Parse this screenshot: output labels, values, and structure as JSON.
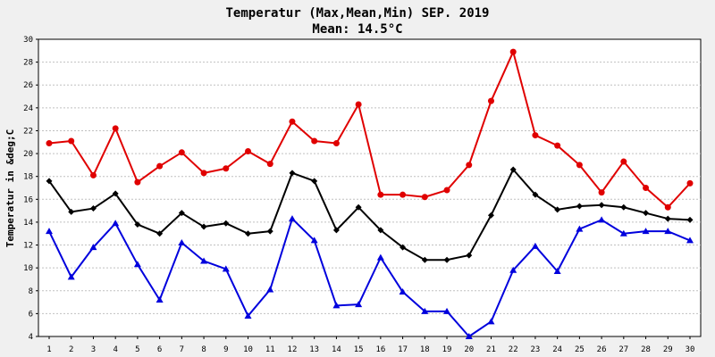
{
  "chart_data": {
    "type": "line",
    "title": "Temperatur (Max,Mean,Min) SEP. 2019",
    "subtitle": "Mean: 14.5°C",
    "xlabel": "",
    "ylabel": "Temperatur in &deg;C",
    "ylim": [
      4,
      30
    ],
    "yticks": [
      4,
      6,
      8,
      10,
      12,
      14,
      16,
      18,
      20,
      22,
      24,
      26,
      28,
      30
    ],
    "categories": [
      "1",
      "2",
      "3",
      "4",
      "5",
      "6",
      "7",
      "8",
      "9",
      "10",
      "11",
      "12",
      "13",
      "14",
      "15",
      "16",
      "17",
      "18",
      "19",
      "20",
      "21",
      "22",
      "23",
      "24",
      "25",
      "26",
      "27",
      "28",
      "29",
      "30"
    ],
    "grid": true,
    "series": [
      {
        "key": "max",
        "color": "#e00000",
        "marker": "circle",
        "values": [
          20.9,
          21.1,
          18.1,
          22.2,
          17.5,
          18.9,
          20.1,
          18.3,
          18.7,
          20.2,
          19.1,
          22.8,
          21.1,
          20.9,
          24.3,
          16.4,
          16.4,
          16.2,
          16.8,
          19.0,
          24.6,
          28.9,
          21.6,
          20.7,
          19.0,
          16.6,
          19.3,
          17.0,
          15.3,
          17.4
        ]
      },
      {
        "key": "mean",
        "color": "#000000",
        "marker": "diamond",
        "values": [
          17.6,
          14.9,
          15.2,
          16.5,
          13.8,
          13.0,
          14.8,
          13.6,
          13.9,
          13.0,
          13.2,
          18.3,
          17.6,
          13.3,
          15.3,
          13.3,
          11.8,
          10.7,
          10.7,
          11.1,
          14.6,
          18.6,
          16.4,
          15.1,
          15.4,
          15.5,
          15.3,
          14.8,
          14.3,
          14.2
        ]
      },
      {
        "key": "min",
        "color": "#0000dd",
        "marker": "triangle",
        "values": [
          13.2,
          9.2,
          11.8,
          13.9,
          10.3,
          7.2,
          12.2,
          10.6,
          9.9,
          5.8,
          8.1,
          14.3,
          12.4,
          6.7,
          6.8,
          10.9,
          7.9,
          6.2,
          6.2,
          4.0,
          5.3,
          9.8,
          11.9,
          9.7,
          13.4,
          14.2,
          13.0,
          13.2,
          13.2,
          12.4
        ]
      }
    ]
  }
}
